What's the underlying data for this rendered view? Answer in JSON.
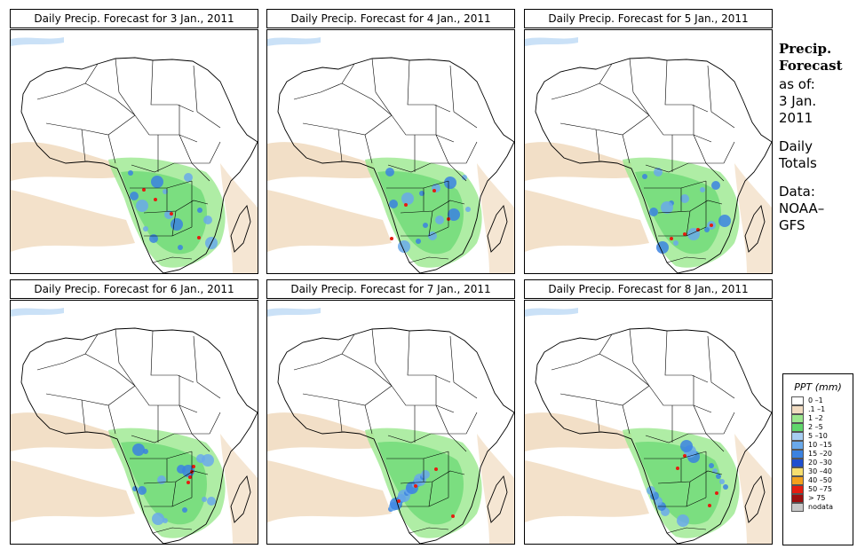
{
  "panels": [
    {
      "title": "Daily Precip. Forecast for  3 Jan., 2011"
    },
    {
      "title": "Daily Precip. Forecast for  4 Jan., 2011"
    },
    {
      "title": "Daily Precip. Forecast for  5 Jan., 2011"
    },
    {
      "title": "Daily Precip. Forecast for  6 Jan., 2011"
    },
    {
      "title": "Daily Precip. Forecast for  7 Jan., 2011"
    },
    {
      "title": "Daily Precip. Forecast for  8 Jan., 2011"
    }
  ],
  "side": {
    "heading1": "Precip.",
    "heading2": "Forecast",
    "asof": "as of:",
    "date1": "3 Jan.",
    "date2": "2011",
    "daily1": "Daily",
    "daily2": "Totals",
    "data1": "Data:",
    "data2": "NOAA–",
    "data3": "GFS"
  },
  "legend": {
    "title": "PPT (mm)",
    "items": [
      {
        "label": "0 –1",
        "color": "#ffffff"
      },
      {
        "label": ".1 –1",
        "color": "#f1dcc1"
      },
      {
        "label": "1 –2",
        "color": "#9be88e"
      },
      {
        "label": "2 –5",
        "color": "#5fd66b"
      },
      {
        "label": "5 –10",
        "color": "#a6cdf2"
      },
      {
        "label": "10 –15",
        "color": "#6aa9ea"
      },
      {
        "label": "15 –20",
        "color": "#3b82e0"
      },
      {
        "label": "20 –30",
        "color": "#1f4fcf"
      },
      {
        "label": "30 –40",
        "color": "#f7df6f"
      },
      {
        "label": "40 –50",
        "color": "#f3a21d"
      },
      {
        "label": "50 –75",
        "color": "#e51d10"
      },
      {
        "label": "> 75",
        "color": "#9c0f0f"
      },
      {
        "label": "nodata",
        "color": "#c8c8c8"
      }
    ]
  }
}
